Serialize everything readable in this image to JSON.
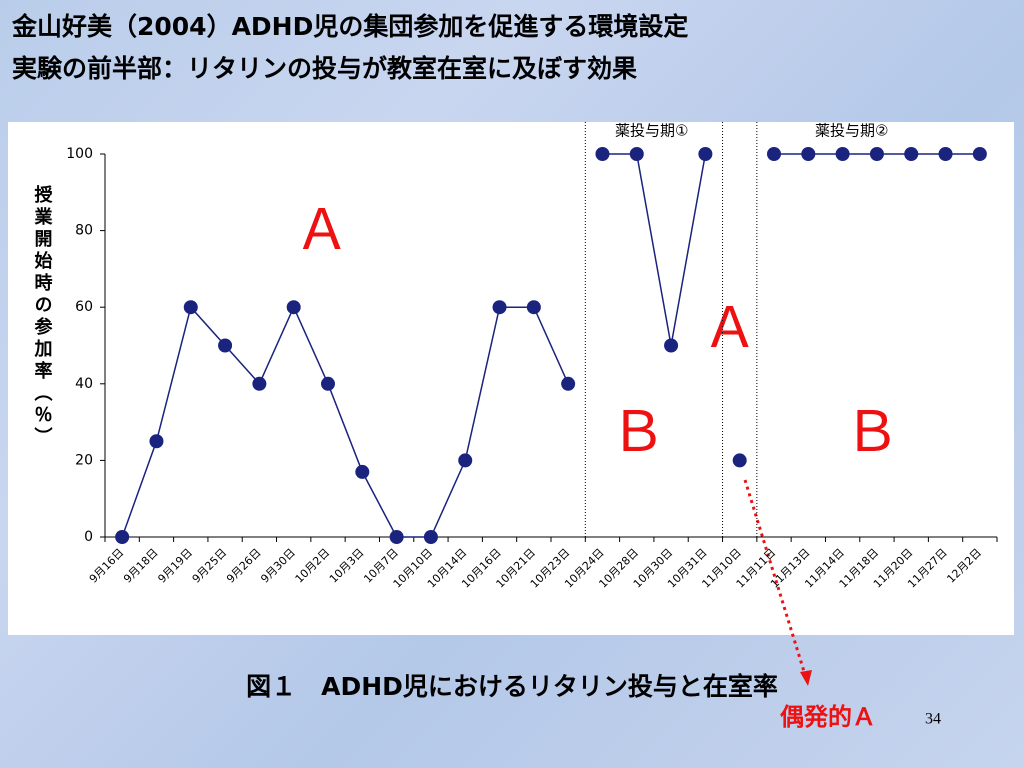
{
  "slide": {
    "title_lines": [
      "金山好美（2004）ADHD児の集団参加を促進する環境設定",
      "実験の前半部：リタリンの投与が教室在室に及ぼす効果"
    ],
    "caption": "図１　ADHD児におけるリタリン投与と在室率",
    "page_number": "34"
  },
  "chart_data": {
    "type": "line",
    "y_label": "授業開始時の参加率（％）",
    "categories": [
      "9月16日",
      "9月18日",
      "9月19日",
      "9月25日",
      "9月26日",
      "9月30日",
      "10月2日",
      "10月3日",
      "10月7日",
      "10月10日",
      "10月14日",
      "10月16日",
      "10月21日",
      "10月23日",
      "10月24日",
      "10月28日",
      "10月30日",
      "10月31日",
      "11月10日",
      "11月11日",
      "11月13日",
      "11月14日",
      "11月18日",
      "11月20日",
      "11月27日",
      "12月2日"
    ],
    "series": [
      {
        "color": "#1a237e",
        "values": [
          0,
          25,
          60,
          50,
          40,
          60,
          40,
          17,
          0,
          0,
          20,
          60,
          60,
          40,
          null,
          null,
          null,
          null,
          null,
          null,
          null,
          null,
          null,
          null,
          null,
          null
        ]
      },
      {
        "color": "#1a237e",
        "values": [
          null,
          null,
          null,
          null,
          null,
          null,
          null,
          null,
          null,
          null,
          null,
          null,
          null,
          null,
          100,
          100,
          50,
          100,
          null,
          null,
          null,
          null,
          null,
          null,
          null,
          null
        ]
      },
      {
        "color": "#1a237e",
        "values": [
          null,
          null,
          null,
          null,
          null,
          null,
          null,
          null,
          null,
          null,
          null,
          null,
          null,
          null,
          null,
          null,
          null,
          null,
          20,
          null,
          null,
          null,
          null,
          null,
          null,
          null
        ]
      },
      {
        "color": "#1a237e",
        "values": [
          null,
          null,
          null,
          null,
          null,
          null,
          null,
          null,
          null,
          null,
          null,
          null,
          null,
          null,
          null,
          null,
          null,
          null,
          null,
          100,
          100,
          100,
          100,
          100,
          100,
          100
        ]
      }
    ],
    "ylim": [
      0,
      100
    ],
    "yticks": [
      0,
      20,
      40,
      60,
      80,
      100
    ],
    "phase_labels": [
      "薬投与期①",
      "薬投与期②"
    ],
    "annotations": [
      "Ａ",
      "Ａ",
      "Ｂ",
      "Ｂ",
      "偶発的Ａ"
    ]
  }
}
